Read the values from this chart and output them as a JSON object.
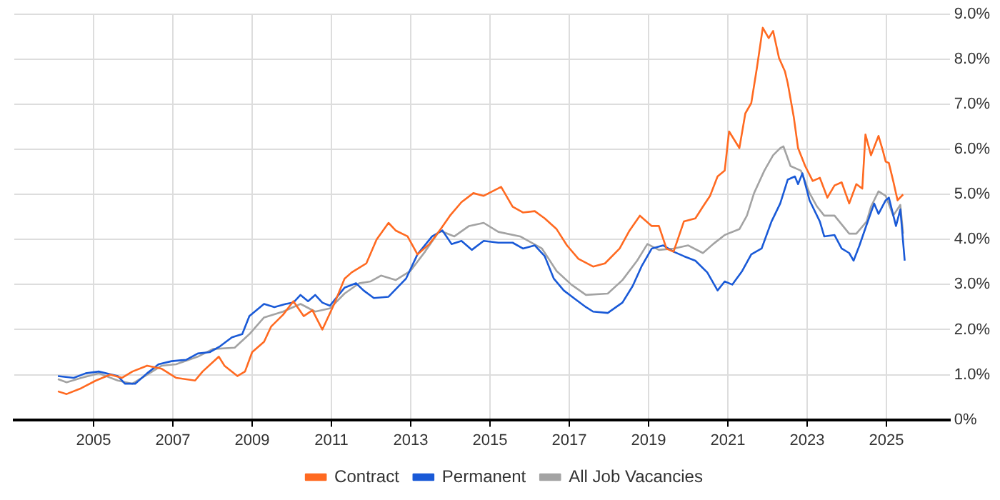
{
  "chart_data": {
    "type": "line",
    "marker": "none",
    "grid": true,
    "legend": "bottom",
    "xlim": [
      2003,
      2026.6
    ],
    "ylim": [
      0,
      9
    ],
    "xticks": [
      2005,
      2007,
      2009,
      2011,
      2013,
      2015,
      2017,
      2019,
      2021,
      2023,
      2025
    ],
    "yticks": [
      {
        "value": 0,
        "label": "0%"
      },
      {
        "value": 1,
        "label": "1.0%"
      },
      {
        "value": 2,
        "label": "2.0%"
      },
      {
        "value": 3,
        "label": "3.0%"
      },
      {
        "value": 4,
        "label": "4.0%"
      },
      {
        "value": 5,
        "label": "5.0%"
      },
      {
        "value": 6,
        "label": "6.0%"
      },
      {
        "value": 7,
        "label": "7.0%"
      },
      {
        "value": 8,
        "label": "8.0%"
      },
      {
        "value": 9,
        "label": "9.0%"
      }
    ],
    "series": [
      {
        "name": "Contract",
        "color": "#ff6a21",
        "x": [
          2004.1,
          2004.32,
          2004.69,
          2005.06,
          2005.42,
          2005.72,
          2005.98,
          2006.35,
          2006.72,
          2007.08,
          2007.56,
          2007.75,
          2008.16,
          2008.3,
          2008.63,
          2008.82,
          2009.0,
          2009.3,
          2009.48,
          2009.78,
          2010.04,
          2010.3,
          2010.52,
          2010.77,
          2011.07,
          2011.33,
          2011.51,
          2011.88,
          2012.14,
          2012.44,
          2012.62,
          2012.92,
          2013.17,
          2013.47,
          2013.73,
          2013.99,
          2014.28,
          2014.58,
          2014.84,
          2015.28,
          2015.57,
          2015.83,
          2016.13,
          2016.38,
          2016.68,
          2016.94,
          2017.23,
          2017.6,
          2017.9,
          2018.27,
          2018.52,
          2018.78,
          2019.08,
          2019.26,
          2019.45,
          2019.63,
          2019.89,
          2020.18,
          2020.37,
          2020.55,
          2020.74,
          2020.92,
          2021.03,
          2021.29,
          2021.44,
          2021.59,
          2021.73,
          2021.88,
          2022.03,
          2022.14,
          2022.29,
          2022.44,
          2022.51,
          2022.66,
          2022.77,
          2022.95,
          2023.14,
          2023.32,
          2023.51,
          2023.69,
          2023.87,
          2024.06,
          2024.24,
          2024.39,
          2024.47,
          2024.61,
          2024.8,
          2024.91,
          2024.98,
          2025.06,
          2025.17,
          2025.28,
          2025.42
        ],
        "values": [
          0.63,
          0.57,
          0.7,
          0.87,
          1.0,
          0.93,
          1.07,
          1.2,
          1.13,
          0.93,
          0.87,
          1.07,
          1.4,
          1.2,
          0.97,
          1.07,
          1.5,
          1.73,
          2.07,
          2.33,
          2.63,
          2.3,
          2.43,
          2.0,
          2.57,
          3.13,
          3.27,
          3.47,
          4.0,
          4.37,
          4.2,
          4.07,
          3.67,
          3.9,
          4.2,
          4.53,
          4.83,
          5.03,
          4.97,
          5.17,
          4.73,
          4.6,
          4.63,
          4.47,
          4.23,
          3.87,
          3.57,
          3.4,
          3.47,
          3.8,
          4.2,
          4.53,
          4.3,
          4.3,
          3.8,
          3.73,
          4.4,
          4.47,
          4.73,
          4.97,
          5.4,
          5.53,
          6.4,
          6.03,
          6.8,
          7.03,
          7.8,
          8.7,
          8.47,
          8.63,
          8.03,
          7.73,
          7.47,
          6.73,
          6.03,
          5.63,
          5.3,
          5.37,
          4.93,
          5.2,
          5.27,
          4.8,
          5.23,
          5.13,
          6.33,
          5.87,
          6.3,
          5.97,
          5.73,
          5.7,
          5.3,
          4.87,
          5.0
        ]
      },
      {
        "name": "Permanent",
        "color": "#1a5ad7",
        "x": [
          2004.1,
          2004.5,
          2004.8,
          2005.13,
          2005.61,
          2005.79,
          2006.05,
          2006.35,
          2006.64,
          2006.97,
          2007.34,
          2007.63,
          2007.93,
          2008.19,
          2008.49,
          2008.75,
          2008.93,
          2009.3,
          2009.56,
          2009.85,
          2010.04,
          2010.22,
          2010.41,
          2010.59,
          2010.77,
          2010.96,
          2011.33,
          2011.62,
          2011.81,
          2012.07,
          2012.44,
          2012.88,
          2013.17,
          2013.54,
          2013.8,
          2014.03,
          2014.28,
          2014.54,
          2014.84,
          2015.21,
          2015.57,
          2015.83,
          2016.13,
          2016.38,
          2016.61,
          2016.86,
          2017.16,
          2017.42,
          2017.6,
          2017.97,
          2018.34,
          2018.6,
          2018.82,
          2019.08,
          2019.37,
          2019.63,
          2019.89,
          2020.18,
          2020.48,
          2020.74,
          2020.92,
          2021.11,
          2021.36,
          2021.59,
          2021.85,
          2022.1,
          2022.32,
          2022.51,
          2022.69,
          2022.77,
          2022.88,
          2023.06,
          2023.32,
          2023.43,
          2023.69,
          2023.87,
          2024.06,
          2024.17,
          2024.32,
          2024.5,
          2024.69,
          2024.8,
          2024.98,
          2025.06,
          2025.24,
          2025.35,
          2025.46
        ],
        "values": [
          0.97,
          0.93,
          1.03,
          1.07,
          0.97,
          0.8,
          0.8,
          1.03,
          1.23,
          1.3,
          1.33,
          1.47,
          1.5,
          1.63,
          1.83,
          1.9,
          2.3,
          2.57,
          2.5,
          2.57,
          2.6,
          2.77,
          2.63,
          2.77,
          2.6,
          2.53,
          2.93,
          3.03,
          2.87,
          2.7,
          2.73,
          3.13,
          3.67,
          4.07,
          4.2,
          3.9,
          3.97,
          3.77,
          3.97,
          3.93,
          3.93,
          3.8,
          3.87,
          3.63,
          3.13,
          2.87,
          2.67,
          2.5,
          2.4,
          2.37,
          2.6,
          2.97,
          3.4,
          3.8,
          3.87,
          3.73,
          3.63,
          3.53,
          3.27,
          2.87,
          3.07,
          3.0,
          3.3,
          3.67,
          3.8,
          4.4,
          4.8,
          5.33,
          5.4,
          5.23,
          5.47,
          4.87,
          4.4,
          4.07,
          4.1,
          3.8,
          3.7,
          3.53,
          3.87,
          4.33,
          4.8,
          4.57,
          4.87,
          4.93,
          4.3,
          4.67,
          3.53
        ]
      },
      {
        "name": "All Job Vacancies",
        "color": "#a3a3a3",
        "x": [
          2004.1,
          2004.32,
          2004.69,
          2005.13,
          2005.61,
          2005.98,
          2006.35,
          2006.72,
          2007.08,
          2007.63,
          2008.01,
          2008.56,
          2008.93,
          2009.3,
          2009.78,
          2010.22,
          2010.59,
          2010.96,
          2011.33,
          2011.7,
          2011.99,
          2012.25,
          2012.62,
          2012.99,
          2013.36,
          2013.73,
          2014.1,
          2014.47,
          2014.84,
          2015.21,
          2015.76,
          2016.31,
          2016.68,
          2017.05,
          2017.42,
          2017.97,
          2018.34,
          2018.71,
          2018.97,
          2019.26,
          2019.63,
          2020.0,
          2020.37,
          2020.63,
          2020.92,
          2021.29,
          2021.48,
          2021.66,
          2021.92,
          2022.14,
          2022.32,
          2022.4,
          2022.58,
          2022.84,
          2023.06,
          2023.25,
          2023.43,
          2023.69,
          2024.06,
          2024.24,
          2024.5,
          2024.61,
          2024.8,
          2024.98,
          2025.17,
          2025.35,
          2025.42
        ],
        "values": [
          0.9,
          0.83,
          0.93,
          1.03,
          0.87,
          0.8,
          1.0,
          1.2,
          1.23,
          1.4,
          1.57,
          1.6,
          1.9,
          2.27,
          2.4,
          2.57,
          2.4,
          2.47,
          2.8,
          3.03,
          3.07,
          3.2,
          3.1,
          3.3,
          3.73,
          4.2,
          4.07,
          4.3,
          4.37,
          4.17,
          4.07,
          3.8,
          3.3,
          3.0,
          2.77,
          2.8,
          3.1,
          3.53,
          3.9,
          3.77,
          3.8,
          3.87,
          3.7,
          3.9,
          4.1,
          4.23,
          4.53,
          5.03,
          5.53,
          5.87,
          6.03,
          6.07,
          5.63,
          5.53,
          5.03,
          4.73,
          4.53,
          4.53,
          4.13,
          4.13,
          4.4,
          4.73,
          5.07,
          4.97,
          4.53,
          4.77,
          4.13
        ]
      }
    ]
  }
}
